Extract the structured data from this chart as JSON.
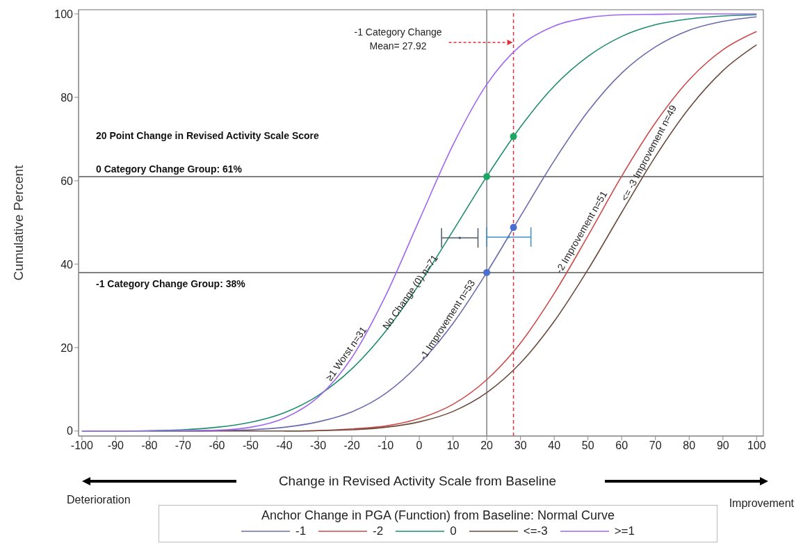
{
  "chart_data": {
    "type": "line",
    "xlabel": "Change in Revised Activity Scale from Baseline",
    "ylabel": "Cumulative Percent",
    "legend_title": "Anchor Change in PGA (Function) from Baseline: Normal Curve",
    "legend": "bottom",
    "grid": false,
    "marker": "none",
    "line_style": "solid",
    "xlim": [
      -101,
      102
    ],
    "ylim": [
      -1.2,
      101
    ],
    "xticks": [
      -100,
      -90,
      -80,
      -70,
      -60,
      -50,
      -40,
      -30,
      -20,
      -10,
      0,
      10,
      20,
      30,
      40,
      50,
      60,
      70,
      80,
      90,
      100
    ],
    "yticks": [
      0,
      20,
      40,
      60,
      80,
      100
    ],
    "x": [
      -100,
      -90,
      -80,
      -70,
      -60,
      -50,
      -40,
      -30,
      -20,
      -10,
      0,
      10,
      20,
      30,
      40,
      50,
      60,
      70,
      80,
      90,
      100
    ],
    "series": [
      {
        "name": "-1",
        "color": "#6a6aae",
        "values": [
          0,
          0,
          0,
          0,
          0.1,
          0.3,
          0.9,
          2.2,
          4.6,
          9.0,
          16.1,
          25.8,
          38.0,
          51.5,
          64.8,
          76.6,
          85.8,
          92.1,
          96.1,
          98.2,
          99.3
        ]
      },
      {
        "name": "-2",
        "color": "#cc4a4a",
        "values": [
          null,
          null,
          null,
          null,
          null,
          null,
          0,
          0.1,
          0.5,
          1.2,
          3.0,
          6.4,
          12.3,
          21.1,
          33.0,
          46.8,
          61.1,
          73.9,
          84.2,
          91.4,
          95.8
        ]
      },
      {
        "name": "0",
        "color": "#1e8c6e",
        "values": [
          0,
          0,
          0.1,
          0.3,
          0.9,
          2.1,
          4.4,
          8.5,
          14.9,
          23.9,
          35.2,
          48.0,
          61.0,
          72.9,
          82.7,
          89.8,
          94.6,
          97.4,
          98.8,
          99.5,
          99.8
        ]
      },
      {
        "name": "<=-3",
        "color": "#6b4a3a",
        "values": [
          null,
          null,
          0,
          0,
          0,
          0,
          0,
          0.1,
          0.3,
          0.9,
          2.2,
          4.7,
          9.2,
          16.3,
          26.3,
          38.7,
          52.4,
          65.8,
          77.4,
          86.4,
          92.6
        ]
      },
      {
        "name": ">=1",
        "color": "#a066f0",
        "values": [
          0,
          0,
          0,
          0.1,
          0.2,
          0.9,
          3.1,
          8.1,
          17.6,
          32.4,
          50.6,
          68.6,
          83.1,
          92.4,
          97.1,
          99.1,
          99.8,
          99.9,
          100,
          100,
          100
        ]
      },
      {
        "type": "scatter",
        "color": "#1aa764",
        "marker": "circle",
        "x": [
          20,
          27.92
        ],
        "values": [
          61,
          70.6
        ]
      },
      {
        "type": "scatter",
        "color": "#4a6fd0",
        "marker": "circle",
        "x": [
          20,
          27.92
        ],
        "values": [
          38,
          48.8
        ]
      },
      {
        "type": "scatter",
        "color": "#4a5a68",
        "marker": "square",
        "x": [
          12
        ],
        "values": [
          46.3
        ],
        "xerrors": [
          [
            6.6,
            17.4
          ]
        ]
      },
      {
        "type": "scatter",
        "color": "#3a8fc8",
        "marker": "square",
        "x": [
          26.5
        ],
        "values": [
          46.5
        ],
        "xerrors": [
          [
            20,
            33.1
          ]
        ]
      }
    ],
    "ref_lines": [
      {
        "axis": "x",
        "value": 20,
        "color": "#808080",
        "line_style": "solid"
      },
      {
        "axis": "x",
        "value": 27.92,
        "color": "#e0303a",
        "line_style": "dashed",
        "label": "-1 Category Change\nMean= 27.92"
      },
      {
        "axis": "y",
        "value": 61,
        "color": "#808080",
        "line_style": "solid",
        "label": "0 Category Change Group: 61%"
      },
      {
        "axis": "y",
        "value": 38,
        "color": "#808080",
        "line_style": "solid",
        "label": "-1 Category Change Group: 38%"
      }
    ],
    "annotations": [
      "20 Point Change in Revised Activity Scale Score",
      "Deterioration",
      "Improvement",
      {
        "text": "≥1 Worst  n=31",
        "x": -20,
        "y": 17.6
      },
      {
        "text": "No Change (0) n=71",
        "x": -2.7,
        "y": 33.3
      },
      {
        "text": "-1 Improvement n=53",
        "x": 10,
        "y": 25.8
      },
      {
        "text": "-2 Improvement n=51",
        "x": 50,
        "y": 46.8
      },
      {
        "text": "<= -3 Improvement n=49",
        "x": 70,
        "y": 65.8
      }
    ]
  }
}
